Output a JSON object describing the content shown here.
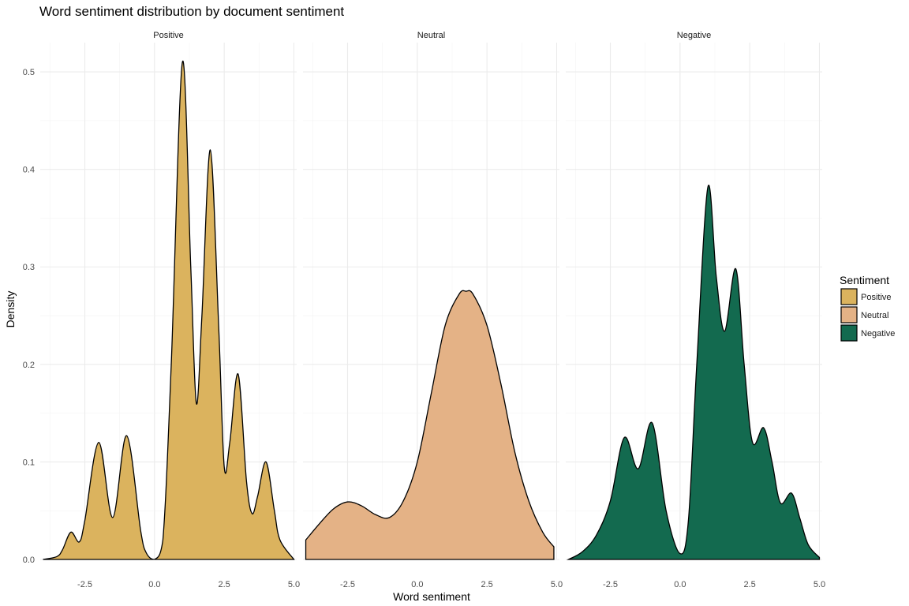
{
  "chart_data": {
    "type": "area",
    "subtype": "faceted density",
    "title": "Word sentiment distribution by document sentiment",
    "xlabel": "Word sentiment",
    "ylabel": "Density",
    "xlim": [
      -4.1,
      5.1
    ],
    "ylim": [
      0,
      0.53
    ],
    "xticks": [
      -2.5,
      0,
      2.5,
      5
    ],
    "xtick_labels": [
      "-2.5",
      "0.0",
      "2.5",
      "5.0"
    ],
    "yticks": [
      0,
      0.1,
      0.2,
      0.3,
      0.4,
      0.5
    ],
    "ytick_labels": [
      "0.0",
      "0.1",
      "0.2",
      "0.3",
      "0.4",
      "0.5"
    ],
    "grid": true,
    "legend": {
      "title": "Sentiment",
      "position": "right",
      "entries": [
        "Positive",
        "Neutral",
        "Negative"
      ]
    },
    "panels": [
      {
        "name": "Positive",
        "color": "#DBB35E",
        "x": [
          -4.0,
          -3.5,
          -3.3,
          -3.0,
          -2.7,
          -2.5,
          -2.0,
          -1.5,
          -1.0,
          -0.5,
          -0.3,
          0.0,
          0.3,
          0.6,
          1.0,
          1.3,
          1.5,
          1.7,
          2.0,
          2.3,
          2.5,
          2.7,
          3.0,
          3.3,
          3.5,
          3.7,
          4.0,
          4.3,
          4.5,
          5.0
        ],
        "y": [
          0.0,
          0.003,
          0.01,
          0.028,
          0.018,
          0.04,
          0.12,
          0.043,
          0.127,
          0.03,
          0.007,
          0.0,
          0.02,
          0.2,
          0.51,
          0.3,
          0.16,
          0.25,
          0.42,
          0.24,
          0.095,
          0.12,
          0.19,
          0.08,
          0.047,
          0.065,
          0.1,
          0.05,
          0.02,
          0.0
        ]
      },
      {
        "name": "Neutral",
        "color": "#E4B286",
        "x": [
          -4.0,
          -3.5,
          -3.0,
          -2.5,
          -2.0,
          -1.5,
          -1.0,
          -0.5,
          0.0,
          0.5,
          1.0,
          1.5,
          1.75,
          2.0,
          2.5,
          3.0,
          3.5,
          4.0,
          4.5,
          4.9
        ],
        "y": [
          0.02,
          0.037,
          0.052,
          0.059,
          0.055,
          0.046,
          0.043,
          0.06,
          0.1,
          0.17,
          0.24,
          0.272,
          0.275,
          0.272,
          0.24,
          0.18,
          0.11,
          0.06,
          0.028,
          0.013
        ]
      },
      {
        "name": "Negative",
        "color": "#136A4F",
        "x": [
          -4.0,
          -3.5,
          -3.0,
          -2.5,
          -2.0,
          -1.5,
          -1.0,
          -0.5,
          0.0,
          0.3,
          0.6,
          1.0,
          1.3,
          1.6,
          2.0,
          2.3,
          2.6,
          3.0,
          3.3,
          3.6,
          4.0,
          4.3,
          4.6,
          5.0
        ],
        "y": [
          0.0,
          0.008,
          0.025,
          0.06,
          0.125,
          0.093,
          0.14,
          0.05,
          0.006,
          0.04,
          0.2,
          0.382,
          0.29,
          0.234,
          0.298,
          0.2,
          0.12,
          0.135,
          0.1,
          0.058,
          0.068,
          0.042,
          0.015,
          0.002
        ]
      }
    ]
  }
}
